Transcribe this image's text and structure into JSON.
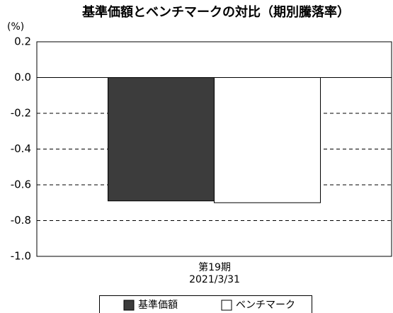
{
  "chart_data": {
    "type": "bar",
    "title": "基準価額とベンチマークの対比（期別騰落率）",
    "y_label": "(%)",
    "categories": [
      "第19期\n2021/3/31"
    ],
    "series": [
      {
        "name": "基準価額",
        "color": "#3c3c3c",
        "values": [
          -0.69
        ]
      },
      {
        "name": "ベンチマーク",
        "color": "#ffffff",
        "values": [
          -0.7
        ]
      }
    ],
    "ylim": [
      -1,
      0.2
    ],
    "yticks": [
      {
        "value": -1,
        "label": "-1.0"
      },
      -0.8,
      -0.6,
      -0.4,
      -0.2,
      {
        "value": 0,
        "label": "0.0"
      },
      0.2
    ],
    "grid": true
  }
}
